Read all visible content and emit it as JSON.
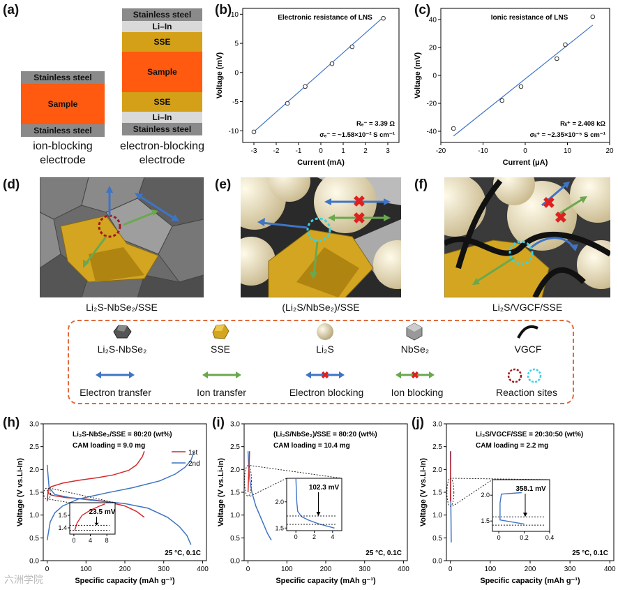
{
  "panels": {
    "a": "(a)",
    "b": "(b)",
    "c": "(c)",
    "d": "(d)",
    "e": "(e)",
    "f": "(f)",
    "h": "(h)",
    "i": "(i)",
    "j": "(j)"
  },
  "electrodes": {
    "ion_blocking": {
      "layers": [
        "Stainless steel",
        "Sample",
        "Stainless steel"
      ],
      "caption_line1": "ion-blocking",
      "caption_line2": "electrode"
    },
    "electron_blocking": {
      "layers": [
        "Stainless steel",
        "Li–In",
        "SSE",
        "Sample",
        "SSE",
        "Li–In",
        "Stainless steel"
      ],
      "caption_line1": "electron-blocking",
      "caption_line2": "electrode"
    }
  },
  "scenes": {
    "d_caption": "Li₂S-NbSe₂/SSE",
    "e_caption": "(Li₂S/NbSe₂)/SSE",
    "f_caption": "Li₂S/VGCF/SSE"
  },
  "legend": {
    "materials": [
      "Li₂S-NbSe₂",
      "SSE",
      "Li₂S",
      "NbSe₂",
      "VGCF"
    ],
    "processes": [
      "Electron transfer",
      "Ion transfer",
      "Electron blocking",
      "Ion blocking",
      "Reaction sites"
    ],
    "colors": {
      "electron": "#3f74c4",
      "ion": "#6aa84f",
      "block": "#e02020",
      "site_red": "#9b1b1b",
      "site_cyan": "#37d3e6"
    }
  },
  "watermark": "六洲学院",
  "chart_data": [
    {
      "id": "b",
      "type": "scatter",
      "title": "Electronic resistance of LNS",
      "xlabel": "Current (mA)",
      "ylabel": "Voltage (mV)",
      "xlim": [
        -3.5,
        3.5
      ],
      "ylim": [
        -12,
        11
      ],
      "xticks": [
        -3,
        -2,
        -1,
        0,
        1,
        2,
        3
      ],
      "yticks": [
        -10,
        -5,
        0,
        5,
        10
      ],
      "x": [
        -3.0,
        -1.5,
        -0.7,
        0.5,
        1.4,
        2.8
      ],
      "y": [
        -10.2,
        -5.3,
        -2.4,
        1.5,
        4.4,
        9.3
      ],
      "fit": {
        "slope": 3.39,
        "intercept": 0.0
      },
      "annotation1": "Rₑ⁻ = 3.39 Ω",
      "annotation2": "σₑ⁻ = ~1.58×10⁻² S cm⁻¹"
    },
    {
      "id": "c",
      "type": "scatter",
      "title": "Ionic resistance of LNS",
      "xlabel": "Current (μA)",
      "ylabel": "Voltage (mV)",
      "xlim": [
        -20,
        20
      ],
      "ylim": [
        -48,
        48
      ],
      "xticks": [
        -20,
        -10,
        0,
        10,
        20
      ],
      "yticks": [
        -40,
        -20,
        0,
        20,
        40
      ],
      "x": [
        -17,
        -5.5,
        -1,
        7.5,
        9.5,
        16
      ],
      "y": [
        -38,
        -18,
        -8,
        12,
        22,
        42
      ],
      "fit": {
        "slope": 2.408,
        "intercept": -2.5
      },
      "annotation1": "Rₗᵢ⁺ = 2.408 kΩ",
      "annotation2": "σₗᵢ⁺ = ~2.35×10⁻⁵ S cm⁻¹"
    },
    {
      "id": "h",
      "type": "line",
      "title": "Li₂S-NbSe₂/SSE = 80:20 (wt%)",
      "subtitle": "CAM loading = 9.0 mg",
      "xlabel": "Specific capacity (mAh g⁻¹)",
      "ylabel": "Voltage (V vs.Li-In)",
      "xlim": [
        -10,
        410
      ],
      "ylim": [
        0,
        3.0
      ],
      "xticks": [
        0,
        100,
        200,
        300,
        400
      ],
      "yticks": [
        0.0,
        0.5,
        1.0,
        1.5,
        2.0,
        2.5,
        3.0
      ],
      "condition": "25 °C, 0.1C",
      "legend": [
        "1st",
        "2nd"
      ],
      "series": [
        {
          "name": "1st discharge",
          "color": "#d42a2a",
          "x": [
            0,
            5,
            10,
            20,
            50,
            100,
            150,
            200,
            230,
            250
          ],
          "y": [
            1.55,
            1.47,
            1.44,
            1.42,
            1.38,
            1.35,
            1.3,
            1.2,
            1.08,
            0.95
          ]
        },
        {
          "name": "1st charge",
          "color": "#d42a2a",
          "x": [
            0,
            3,
            10,
            40,
            80,
            130,
            170,
            210,
            230,
            245,
            250
          ],
          "y": [
            1.3,
            1.55,
            1.62,
            1.7,
            1.76,
            1.82,
            1.88,
            1.98,
            2.1,
            2.28,
            2.4
          ]
        },
        {
          "name": "2nd discharge",
          "color": "#3f74c4",
          "x": [
            0,
            5,
            20,
            60,
            120,
            200,
            260,
            310,
            340,
            360,
            370
          ],
          "y": [
            2.1,
            1.6,
            1.45,
            1.38,
            1.32,
            1.25,
            1.15,
            0.95,
            0.75,
            0.55,
            0.35
          ]
        },
        {
          "name": "2nd charge",
          "color": "#3f74c4",
          "x": [
            0,
            8,
            20,
            40,
            80,
            150,
            220,
            290,
            330,
            355,
            370,
            378
          ],
          "y": [
            0.45,
            0.85,
            1.05,
            1.2,
            1.35,
            1.48,
            1.6,
            1.75,
            1.9,
            2.05,
            2.2,
            2.38
          ]
        }
      ],
      "inset": {
        "xlim": [
          -1,
          10
        ],
        "ylim": [
          1.35,
          1.6
        ],
        "xticks": [
          0,
          4,
          8
        ],
        "yticks": [
          1.4,
          1.5
        ],
        "label": "23.5 mV"
      }
    },
    {
      "id": "i",
      "type": "line",
      "title": "(Li₂S/NbSe₂)/SSE = 80:20 (wt%)",
      "subtitle": "CAM loading = 10.4 mg",
      "xlabel": "Specific capacity (mAh g⁻¹)",
      "ylabel": "Voltage (V vs.Li-In)",
      "xlim": [
        -10,
        410
      ],
      "ylim": [
        0,
        3.0
      ],
      "xticks": [
        0,
        100,
        200,
        300,
        400
      ],
      "yticks": [
        0.0,
        0.5,
        1.0,
        1.5,
        2.0,
        2.5,
        3.0
      ],
      "condition": "25 °C, 0.1C",
      "series": [
        {
          "name": "discharge",
          "color": "#3f74c4",
          "x": [
            0,
            2,
            5,
            10,
            20,
            35,
            50,
            60
          ],
          "y": [
            2.4,
            2.05,
            1.75,
            1.5,
            1.2,
            0.9,
            0.6,
            0.45
          ]
        },
        {
          "name": "charge",
          "color": "#d42a2a",
          "x": [
            0,
            1,
            2,
            3,
            4
          ],
          "y": [
            1.5,
            1.75,
            1.95,
            2.1,
            2.4
          ]
        }
      ],
      "inset": {
        "xlim": [
          -1,
          5
        ],
        "ylim": [
          1.45,
          2.45
        ],
        "xticks": [
          0,
          2,
          4
        ],
        "yticks": [
          1.5,
          2.0
        ],
        "label": "102.3 mV"
      }
    },
    {
      "id": "j",
      "type": "line",
      "title": "Li₂S/VGCF/SSE = 20:30:50 (wt%)",
      "subtitle": "CAM loading = 2.2 mg",
      "xlabel": "Specific capacity (mAh g⁻¹)",
      "ylabel": "Voltage (V vs.Li-In)",
      "xlim": [
        -10,
        410
      ],
      "ylim": [
        0,
        3.0
      ],
      "xticks": [
        0,
        100,
        200,
        300,
        400
      ],
      "yticks": [
        0.0,
        0.5,
        1.0,
        1.5,
        2.0,
        2.5,
        3.0
      ],
      "condition": "25 °C, 0.1C",
      "series": [
        {
          "name": "discharge",
          "color": "#3f74c4",
          "x": [
            0,
            0.3,
            0.6,
            1.0,
            1.5,
            2.0
          ],
          "y": [
            2.4,
            1.9,
            1.6,
            1.3,
            0.9,
            0.4
          ]
        },
        {
          "name": "charge",
          "color": "#d42a2a",
          "x": [
            0,
            0.2,
            0.5,
            1.0
          ],
          "y": [
            1.3,
            1.6,
            2.0,
            2.4
          ]
        }
      ],
      "inset": {
        "xlim": [
          -0.05,
          0.4
        ],
        "ylim": [
          1.3,
          2.3
        ],
        "xticks": [
          0.0,
          0.2,
          0.4
        ],
        "yticks": [
          1.5,
          2.0
        ],
        "label": "358.1 mV"
      }
    }
  ]
}
